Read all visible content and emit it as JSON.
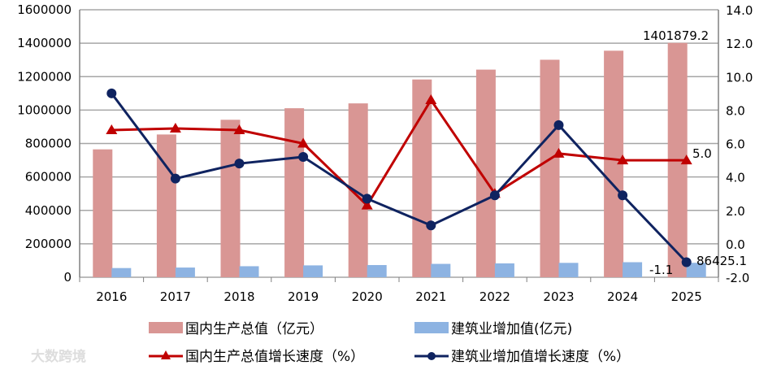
{
  "chart_data": {
    "type": "bar+line",
    "categories": [
      "2016",
      "2017",
      "2018",
      "2019",
      "2020",
      "2021",
      "2022",
      "2023",
      "2024",
      "2025"
    ],
    "y_left": {
      "ylim": [
        0,
        1600000
      ],
      "ticks": [
        "0",
        "200000",
        "400000",
        "600000",
        "800000",
        "1000000",
        "1200000",
        "1400000",
        "1600000"
      ]
    },
    "y_right": {
      "ylim": [
        -2,
        14
      ],
      "ticks": [
        "-2.0",
        "0.0",
        "2.0",
        "4.0",
        "6.0",
        "8.0",
        "10.0",
        "12.0",
        "14.0"
      ]
    },
    "grid": true,
    "legend_placement": "bottom",
    "series": [
      {
        "name": "国内生产总值（亿元）",
        "kind": "bar",
        "axis": "left",
        "color": "#d99694",
        "values": [
          765000,
          854000,
          942000,
          1011000,
          1040000,
          1183000,
          1242000,
          1301000,
          1355000,
          1401879.2
        ]
      },
      {
        "name": "建筑业增加值(亿元)",
        "kind": "bar",
        "axis": "left",
        "color": "#8db3e2",
        "values": [
          55000,
          58000,
          66000,
          71000,
          73000,
          80000,
          83000,
          86000,
          90000,
          86425.1
        ]
      },
      {
        "name": "国内生产总值增长速度（%）",
        "kind": "line",
        "axis": "right",
        "color": "#c00000",
        "marker": "triangle",
        "values": [
          6.8,
          6.9,
          6.8,
          6.0,
          2.3,
          8.6,
          3.0,
          5.4,
          5.0,
          5.0
        ]
      },
      {
        "name": "建筑业增加值增长速度（%）",
        "kind": "line",
        "axis": "right",
        "color": "#0f2360",
        "marker": "circle",
        "values": [
          9.0,
          3.9,
          4.8,
          5.2,
          2.7,
          1.1,
          2.9,
          7.1,
          2.9,
          -1.1
        ]
      }
    ],
    "data_labels": [
      "1401879.2",
      "86425.1",
      "5.0",
      "-1.1"
    ]
  },
  "watermark": "大数跨境"
}
